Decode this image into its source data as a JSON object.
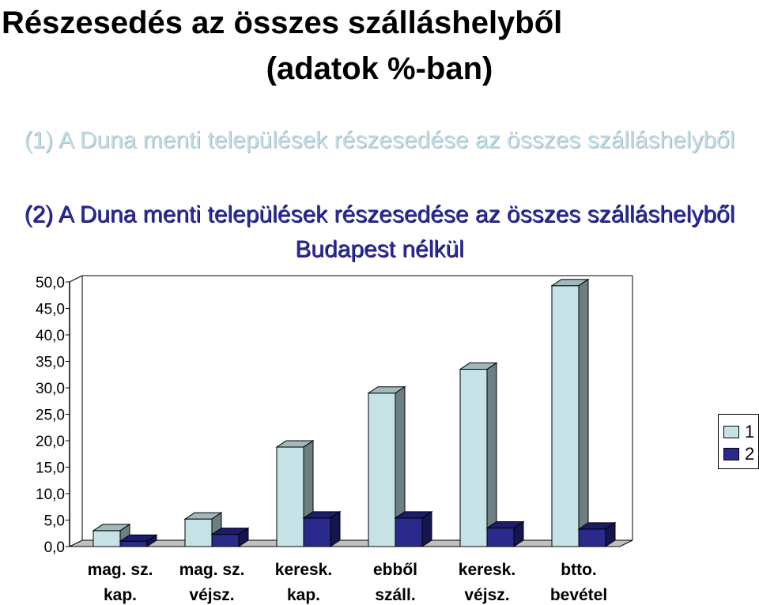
{
  "title": {
    "line1": "Részesedés az összes szálláshelyből",
    "line2": "(adatok %-ban)"
  },
  "series_desc": [
    "(1) A Duna menti települések részesedése az összes szálláshelyből",
    "(2) A Duna menti települések részesedése az összes szálláshelyből Budapest nélkül"
  ],
  "colors": {
    "series1": "#c5e3e6",
    "series2": "#2a2a8c"
  },
  "chart_data": {
    "type": "bar",
    "title": "Részesedés az összes szálláshelyből (adatok %-ban)",
    "categories": [
      [
        "mag. sz.",
        "kap."
      ],
      [
        "mag. sz.",
        "véjsz."
      ],
      [
        "keresk.",
        "kap."
      ],
      [
        "ebből",
        "száll."
      ],
      [
        "keresk.",
        "véjsz."
      ],
      [
        "btto.",
        "bevétel"
      ]
    ],
    "series": [
      {
        "name": "1",
        "values": [
          3.0,
          5.2,
          18.8,
          29.0,
          33.5,
          49.3
        ]
      },
      {
        "name": "2",
        "values": [
          1.0,
          2.3,
          5.4,
          5.4,
          3.5,
          3.3
        ]
      }
    ],
    "ylim": [
      0,
      50
    ],
    "yticks": [
      "50,0",
      "45,0",
      "40,0",
      "35,0",
      "30,0",
      "25,0",
      "20,0",
      "15,0",
      "10,0",
      "5,0",
      "0,0"
    ],
    "legend": "right",
    "grid": false
  }
}
